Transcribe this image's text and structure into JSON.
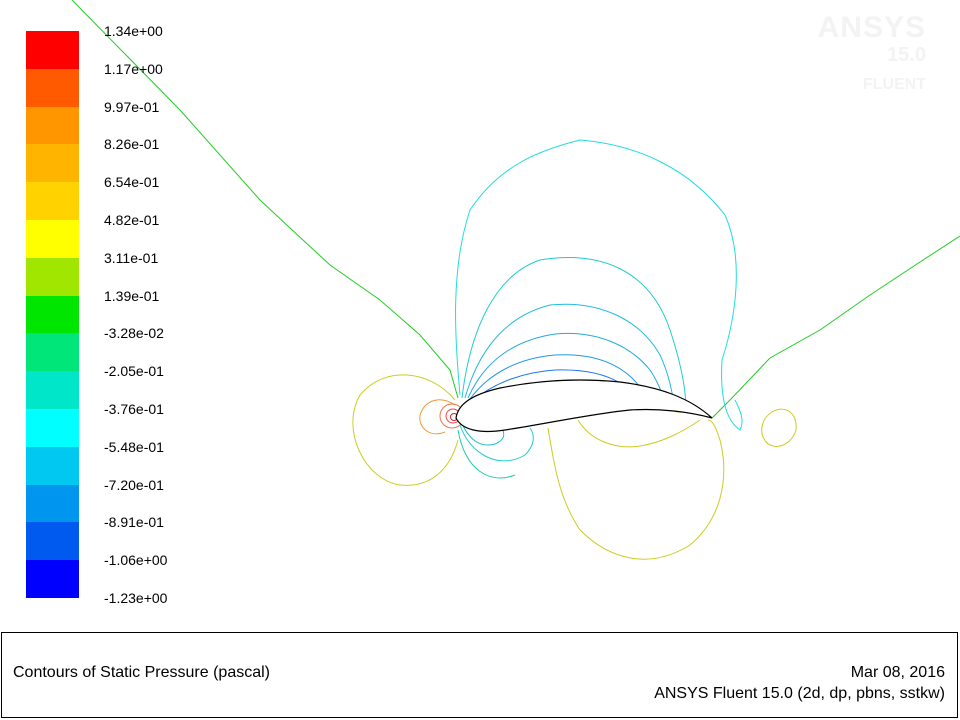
{
  "window": {
    "footer_title": "Contours of Static Pressure (pascal)",
    "footer_date": "Mar 08, 2016",
    "footer_solver": "ANSYS Fluent 15.0 (2d, dp, pbns, sstkw)"
  },
  "watermark": {
    "brand": "ANSYS",
    "version": "15.0",
    "product": "FLUENT"
  },
  "colorbar": {
    "labels": [
      "1.34e+00",
      "1.17e+00",
      "9.97e-01",
      "8.26e-01",
      "6.54e-01",
      "4.82e-01",
      "3.11e-01",
      "1.39e-01",
      "-3.28e-02",
      "-2.05e-01",
      "-3.76e-01",
      "-5.48e-01",
      "-7.20e-01",
      "-8.91e-01",
      "-1.06e+00",
      "-1.23e+00"
    ],
    "colors": [
      "#ff0000",
      "#ff5a00",
      "#ff9600",
      "#ffb400",
      "#ffd200",
      "#ffff00",
      "#a0e600",
      "#00e600",
      "#00e678",
      "#00e6c8",
      "#00ffff",
      "#00c8f0",
      "#0096f0",
      "#005af0",
      "#0000ff"
    ]
  },
  "plot": {
    "body_color": "#000000"
  }
}
